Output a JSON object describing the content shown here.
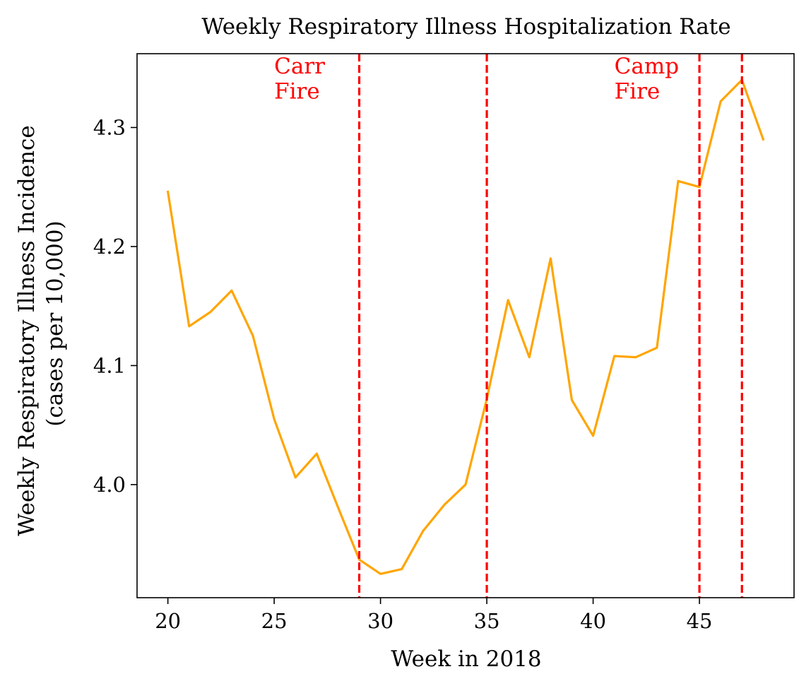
{
  "chart_data": {
    "type": "line",
    "title": "Weekly Respiratory Illness Hospitalization Rate",
    "xlabel": "Week in 2018",
    "ylabel_line1": "Weekly Respiratory Illness Incidence",
    "ylabel_line2": "(cases per 10,000)",
    "xlim": [
      18.55,
      49.45
    ],
    "ylim": [
      3.905,
      4.362
    ],
    "x_ticks": [
      20,
      25,
      30,
      35,
      40,
      45
    ],
    "x_tick_labels": [
      "20",
      "25",
      "30",
      "35",
      "40",
      "45"
    ],
    "y_ticks": [
      4.0,
      4.1,
      4.2,
      4.3
    ],
    "y_tick_labels": [
      "4.0",
      "4.1",
      "4.2",
      "4.3"
    ],
    "grid": false,
    "series": [
      {
        "color": "#FFA500",
        "x": [
          20,
          21,
          22,
          23,
          24,
          25,
          26,
          27,
          28,
          29,
          30,
          31,
          32,
          33,
          34,
          35,
          36,
          37,
          38,
          39,
          40,
          41,
          42,
          43,
          44,
          45,
          46,
          47,
          48
        ],
        "y": [
          4.246,
          4.133,
          4.145,
          4.163,
          4.125,
          4.055,
          4.006,
          4.026,
          3.981,
          3.937,
          3.925,
          3.929,
          3.961,
          3.983,
          4.0,
          4.072,
          4.155,
          4.107,
          4.19,
          4.071,
          4.041,
          4.108,
          4.107,
          4.115,
          4.255,
          4.25,
          4.322,
          4.34,
          4.29
        ]
      }
    ],
    "vlines": [
      {
        "x": 29,
        "color": "#FF0000",
        "style": "dashed"
      },
      {
        "x": 35,
        "color": "#FF0000",
        "style": "dashed"
      },
      {
        "x": 45,
        "color": "#FF0000",
        "style": "dashed"
      },
      {
        "x": 47,
        "color": "#FF0000",
        "style": "dashed"
      }
    ],
    "annotations": [
      {
        "lines": [
          "Carr",
          "Fire"
        ],
        "x": 25,
        "y": 4.33,
        "color": "#FF0000"
      },
      {
        "lines": [
          "Camp",
          "Fire"
        ],
        "x": 41,
        "y": 4.33,
        "color": "#FF0000"
      }
    ]
  }
}
